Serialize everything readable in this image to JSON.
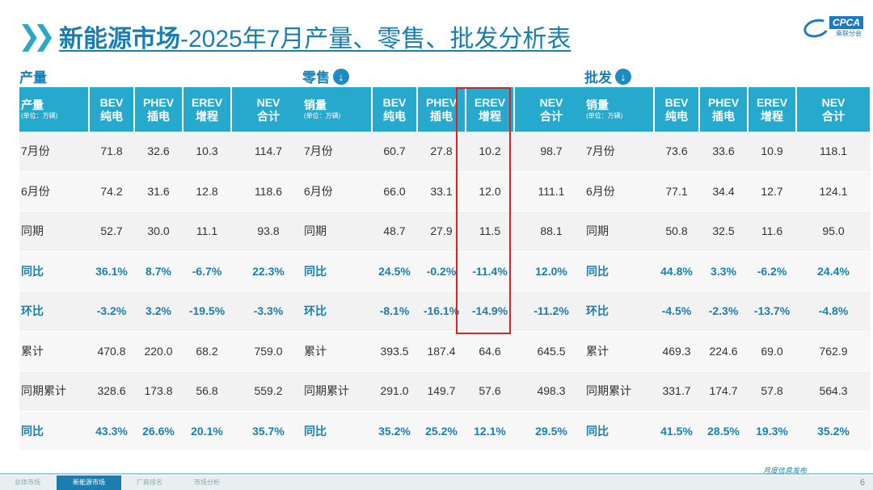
{
  "header": {
    "title_main": "新能源市场",
    "title_rest": "-2025年7月产量、零售、批发分析表",
    "logo_text": "CPCA",
    "logo_sub": "乘联分会"
  },
  "sections": [
    {
      "label": "产量",
      "has_icon": false,
      "header": {
        "first": "产量",
        "unit": "(单位：万辆)",
        "cols": [
          [
            "BEV",
            "纯电"
          ],
          [
            "PHEV",
            "插电"
          ],
          [
            "EREV",
            "增程"
          ],
          [
            "NEV",
            "合计"
          ]
        ]
      },
      "rows": [
        {
          "label": "7月份",
          "values": [
            "71.8",
            "32.6",
            "10.3",
            "114.7"
          ],
          "hl": false
        },
        {
          "label": "6月份",
          "values": [
            "74.2",
            "31.6",
            "12.8",
            "118.6"
          ],
          "hl": false
        },
        {
          "label": "同期",
          "values": [
            "52.7",
            "30.0",
            "11.1",
            "93.8"
          ],
          "hl": false
        },
        {
          "label": "同比",
          "values": [
            "36.1%",
            "8.7%",
            "-6.7%",
            "22.3%"
          ],
          "hl": true
        },
        {
          "label": "环比",
          "values": [
            "-3.2%",
            "3.2%",
            "-19.5%",
            "-3.3%"
          ],
          "hl": true
        },
        {
          "label": "累计",
          "values": [
            "470.8",
            "220.0",
            "68.2",
            "759.0"
          ],
          "hl": false
        },
        {
          "label": "同期累计",
          "values": [
            "328.6",
            "173.8",
            "56.8",
            "559.2"
          ],
          "hl": false
        },
        {
          "label": "同比",
          "values": [
            "43.3%",
            "26.6%",
            "20.1%",
            "35.7%"
          ],
          "hl": true
        }
      ]
    },
    {
      "label": "零售",
      "has_icon": true,
      "header": {
        "first": "销量",
        "unit": "(单位：万辆)",
        "cols": [
          [
            "BEV",
            "纯电"
          ],
          [
            "PHEV",
            "插电"
          ],
          [
            "EREV",
            "增程"
          ],
          [
            "NEV",
            "合计"
          ]
        ]
      },
      "rows": [
        {
          "label": "7月份",
          "values": [
            "60.7",
            "27.8",
            "10.2",
            "98.7"
          ],
          "hl": false
        },
        {
          "label": "6月份",
          "values": [
            "66.0",
            "33.1",
            "12.0",
            "111.1"
          ],
          "hl": false
        },
        {
          "label": "同期",
          "values": [
            "48.7",
            "27.9",
            "11.5",
            "88.1"
          ],
          "hl": false
        },
        {
          "label": "同比",
          "values": [
            "24.5%",
            "-0.2%",
            "-11.4%",
            "12.0%"
          ],
          "hl": true
        },
        {
          "label": "环比",
          "values": [
            "-8.1%",
            "-16.1%",
            "-14.9%",
            "-11.2%"
          ],
          "hl": true
        },
        {
          "label": "累计",
          "values": [
            "393.5",
            "187.4",
            "64.6",
            "645.5"
          ],
          "hl": false
        },
        {
          "label": "同期累计",
          "values": [
            "291.0",
            "149.7",
            "57.6",
            "498.3"
          ],
          "hl": false
        },
        {
          "label": "同比",
          "values": [
            "35.2%",
            "25.2%",
            "12.1%",
            "29.5%"
          ],
          "hl": true
        }
      ]
    },
    {
      "label": "批发",
      "has_icon": true,
      "header": {
        "first": "销量",
        "unit": "(单位：万辆)",
        "cols": [
          [
            "BEV",
            "纯电"
          ],
          [
            "PHEV",
            "插电"
          ],
          [
            "EREV",
            "增程"
          ],
          [
            "NEV",
            "合计"
          ]
        ]
      },
      "rows": [
        {
          "label": "7月份",
          "values": [
            "73.6",
            "33.6",
            "10.9",
            "118.1"
          ],
          "hl": false
        },
        {
          "label": "6月份",
          "values": [
            "77.1",
            "34.4",
            "12.7",
            "124.1"
          ],
          "hl": false
        },
        {
          "label": "同期",
          "values": [
            "50.8",
            "32.5",
            "11.6",
            "95.0"
          ],
          "hl": false
        },
        {
          "label": "同比",
          "values": [
            "44.8%",
            "3.3%",
            "-6.2%",
            "24.4%"
          ],
          "hl": true
        },
        {
          "label": "环比",
          "values": [
            "-4.5%",
            "-2.3%",
            "-13.7%",
            "-4.8%"
          ],
          "hl": true
        },
        {
          "label": "累计",
          "values": [
            "469.3",
            "224.6",
            "69.0",
            "762.9"
          ],
          "hl": false
        },
        {
          "label": "同期累计",
          "values": [
            "331.7",
            "174.7",
            "57.8",
            "564.3"
          ],
          "hl": false
        },
        {
          "label": "同比",
          "values": [
            "41.5%",
            "28.5%",
            "19.3%",
            "35.2%"
          ],
          "hl": true
        }
      ]
    }
  ],
  "footer": {
    "tabs": [
      {
        "label": "总体市场",
        "active": false
      },
      {
        "label": "新能源市场",
        "active": true
      },
      {
        "label": "厂商排名",
        "active": false
      },
      {
        "label": "市场分析",
        "active": false
      }
    ],
    "note": "月度信息发布",
    "page": "6"
  },
  "colors": {
    "accent": "#27a8cd",
    "title": "#1a7fb0",
    "highlight_box": "#e02020"
  }
}
